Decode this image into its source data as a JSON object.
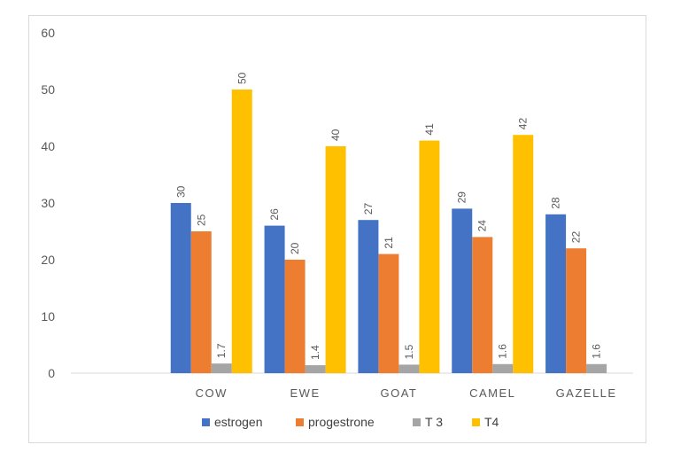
{
  "chart_data": {
    "type": "bar",
    "title": "",
    "xlabel": "",
    "ylabel": "",
    "ylim": [
      0,
      60
    ],
    "yticks": [
      0,
      10,
      20,
      30,
      40,
      50,
      60
    ],
    "categories": [
      "",
      "COW",
      "EWE",
      "GOAT",
      "CAMEL",
      "GAZELLE"
    ],
    "series": [
      {
        "name": "estrogen",
        "color": "#4472c4",
        "values": [
          null,
          30,
          26,
          27,
          29,
          28
        ],
        "labels": [
          "",
          "30",
          "26",
          "27",
          "29",
          "28"
        ]
      },
      {
        "name": "progestrone",
        "color": "#ed7d31",
        "values": [
          null,
          25,
          20,
          21,
          24,
          22
        ],
        "labels": [
          "",
          "25",
          "20",
          "21",
          "24",
          "22"
        ]
      },
      {
        "name": "T 3",
        "color": "#a5a5a5",
        "values": [
          null,
          1.7,
          1.4,
          1.5,
          1.6,
          1.6
        ],
        "labels": [
          "",
          "1.7",
          "1.4",
          "1.5",
          "1.6",
          "1.6"
        ]
      },
      {
        "name": "T4",
        "color": "#ffc000",
        "values": [
          null,
          50,
          40,
          41,
          42,
          null
        ],
        "labels": [
          "",
          "50",
          "40",
          "41",
          "42",
          ""
        ]
      }
    ],
    "grid": false,
    "legend_position": "bottom"
  }
}
